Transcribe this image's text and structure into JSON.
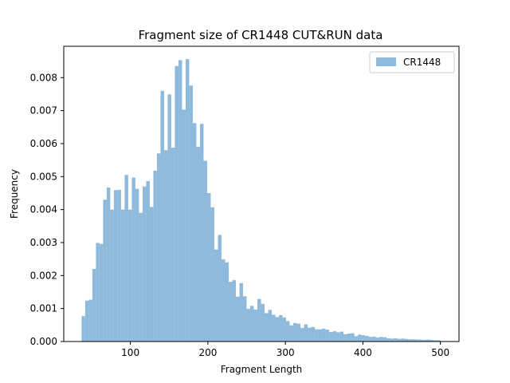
{
  "chart_data": {
    "type": "bar",
    "title": "Fragment size of CR1448 CUT&RUN data",
    "xlabel": "Fragment Length",
    "ylabel": "Frequency",
    "xlim": [
      14,
      524
    ],
    "ylim": [
      0,
      0.00895
    ],
    "xticks": [
      100,
      200,
      300,
      400,
      500
    ],
    "yticks": [
      0.0,
      0.001,
      0.002,
      0.003,
      0.004,
      0.005,
      0.006,
      0.007,
      0.008
    ],
    "ytick_labels": [
      "0.000",
      "0.001",
      "0.002",
      "0.003",
      "0.004",
      "0.005",
      "0.006",
      "0.007",
      "0.008"
    ],
    "bin_start": 37,
    "bin_width": 4.63,
    "values": [
      0.00077,
      0.00124,
      0.00127,
      0.0022,
      0.00299,
      0.00296,
      0.0043,
      0.00467,
      0.004,
      0.00459,
      0.0046,
      0.004,
      0.00505,
      0.004,
      0.00497,
      0.00463,
      0.0039,
      0.0047,
      0.00486,
      0.00408,
      0.00518,
      0.0057,
      0.0076,
      0.0058,
      0.00749,
      0.00588,
      0.00835,
      0.00853,
      0.00703,
      0.00856,
      0.00776,
      0.00662,
      0.0059,
      0.0066,
      0.00548,
      0.0045,
      0.00407,
      0.00279,
      0.00323,
      0.00249,
      0.0024,
      0.00181,
      0.00186,
      0.00136,
      0.00177,
      0.00137,
      0.00099,
      0.00108,
      0.00097,
      0.00129,
      0.00114,
      0.00086,
      0.00096,
      0.00081,
      0.00074,
      0.0008,
      0.00073,
      0.00062,
      0.00049,
      0.00056,
      0.00054,
      0.00041,
      0.00052,
      0.00042,
      0.00044,
      0.00037,
      0.00037,
      0.00039,
      0.00036,
      0.00029,
      0.00031,
      0.00028,
      0.0003,
      0.00022,
      0.00024,
      0.00025,
      0.00016,
      0.00021,
      0.00019,
      0.00017,
      0.00014,
      0.00015,
      0.00012,
      0.00014,
      0.00013,
      0.0001,
      9e-05,
      0.0001,
      8e-05,
      9e-05,
      8e-05,
      7e-05,
      7e-05,
      6e-05,
      6e-05,
      5e-05,
      6e-05,
      5e-05,
      4e-05,
      4e-05
    ],
    "series": [
      {
        "name": "CR1448",
        "color": "#8fbadb"
      }
    ],
    "legend": "top-right",
    "grid": false
  }
}
